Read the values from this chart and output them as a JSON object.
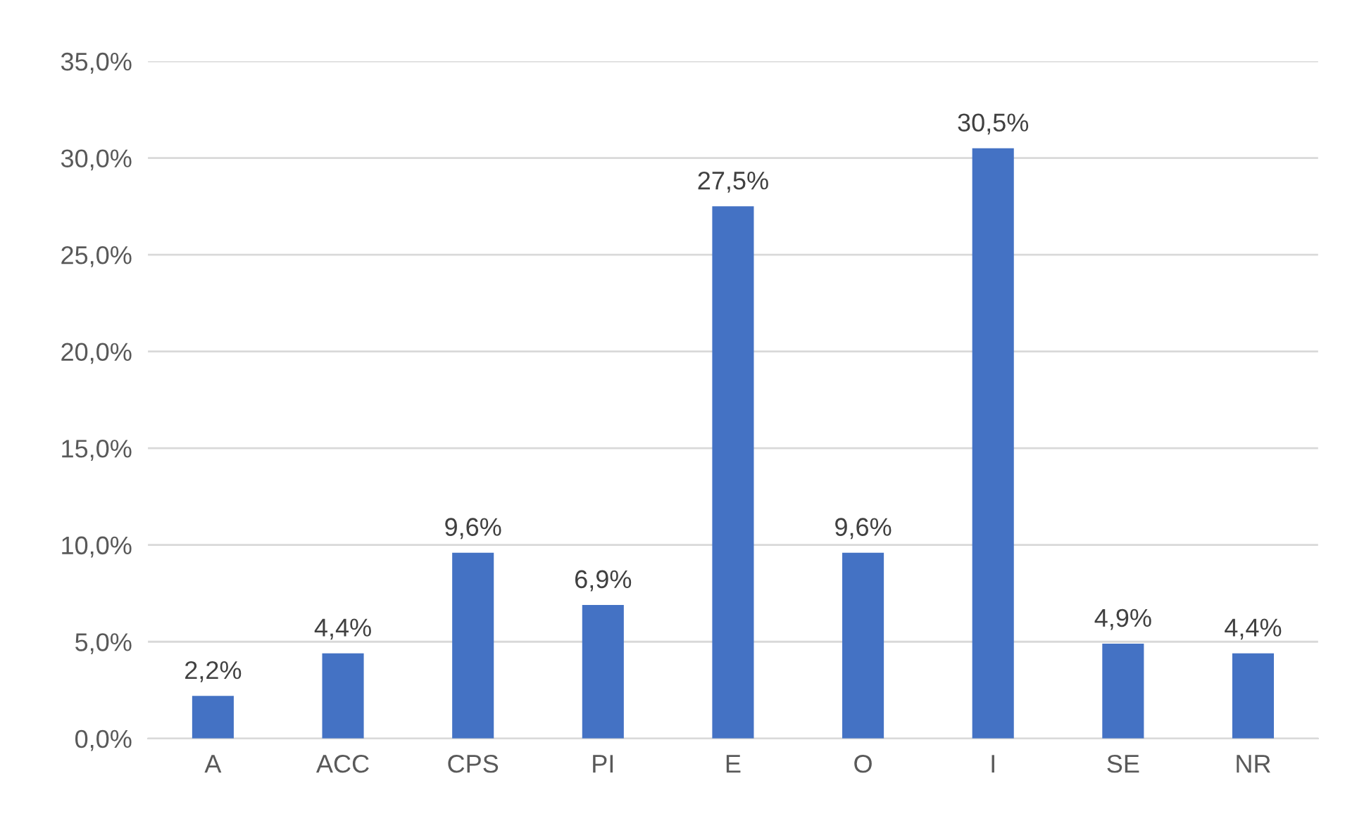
{
  "chart_data": {
    "type": "bar",
    "categories": [
      "A",
      "ACC",
      "CPS",
      "PI",
      "E",
      "O",
      "I",
      "SE",
      "NR"
    ],
    "values": [
      2.2,
      4.4,
      9.6,
      6.9,
      27.5,
      9.6,
      30.5,
      4.9,
      4.4
    ],
    "value_labels": [
      "2,2%",
      "4,4%",
      "9,6%",
      "6,9%",
      "27,5%",
      "9,6%",
      "30,5%",
      "4,9%",
      "4,4%"
    ],
    "color": "#4472c4",
    "ylim": [
      0,
      35
    ],
    "yticks": [
      {
        "value": 0,
        "label": "0,0%"
      },
      {
        "value": 5,
        "label": "5,0%"
      },
      {
        "value": 10,
        "label": "10,0%"
      },
      {
        "value": 15,
        "label": "15,0%"
      },
      {
        "value": 20,
        "label": "20,0%"
      },
      {
        "value": 25,
        "label": "25,0%"
      },
      {
        "value": 30,
        "label": "30,0%"
      },
      {
        "value": 35,
        "label": "35,0%"
      }
    ],
    "grid": "y"
  }
}
